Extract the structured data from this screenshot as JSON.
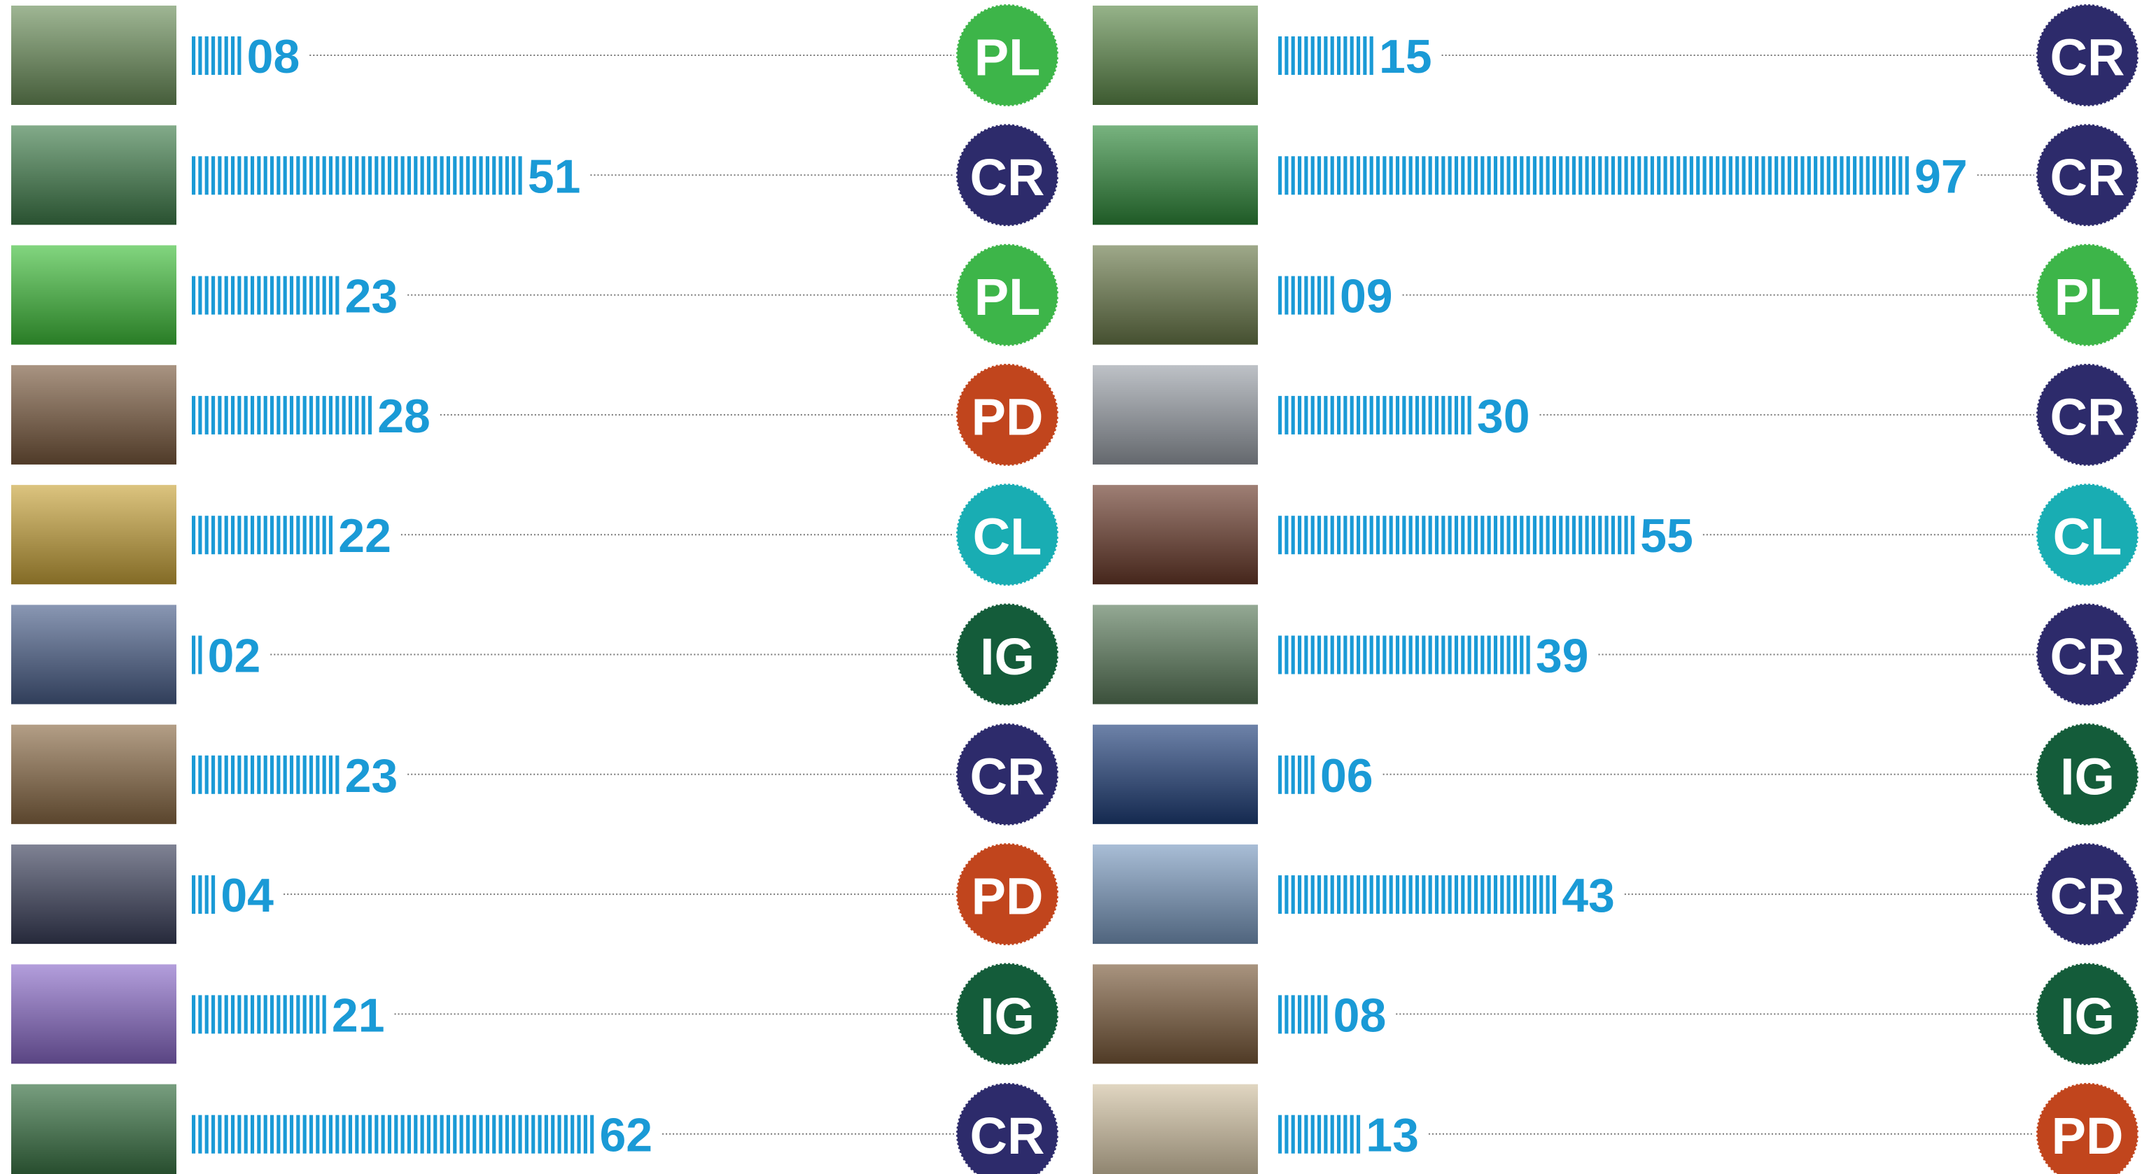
{
  "columns": [
    {
      "rows": [
        {
          "value": 8,
          "value_label": "08",
          "code": "PL",
          "color": "#3db549"
        },
        {
          "value": 51,
          "value_label": "51",
          "code": "CR",
          "color": "#2d2b6b"
        },
        {
          "value": 23,
          "value_label": "23",
          "code": "PL",
          "color": "#3db549"
        },
        {
          "value": 28,
          "value_label": "28",
          "code": "PD",
          "color": "#c1451d"
        },
        {
          "value": 22,
          "value_label": "22",
          "code": "CL",
          "color": "#19adb3"
        },
        {
          "value": 2,
          "value_label": "02",
          "code": "IG",
          "color": "#145c3a"
        },
        {
          "value": 23,
          "value_label": "23",
          "code": "CR",
          "color": "#2d2b6b"
        },
        {
          "value": 4,
          "value_label": "04",
          "code": "PD",
          "color": "#c1451d"
        },
        {
          "value": 21,
          "value_label": "21",
          "code": "IG",
          "color": "#145c3a"
        },
        {
          "value": 62,
          "value_label": "62",
          "code": "CR",
          "color": "#2d2b6b"
        }
      ]
    },
    {
      "rows": [
        {
          "value": 15,
          "value_label": "15",
          "code": "CR",
          "color": "#2d2b6b"
        },
        {
          "value": 97,
          "value_label": "97",
          "code": "CR",
          "color": "#2d2b6b"
        },
        {
          "value": 9,
          "value_label": "09",
          "code": "PL",
          "color": "#3db549"
        },
        {
          "value": 30,
          "value_label": "30",
          "code": "CR",
          "color": "#2d2b6b"
        },
        {
          "value": 55,
          "value_label": "55",
          "code": "CL",
          "color": "#19adb3"
        },
        {
          "value": 39,
          "value_label": "39",
          "code": "CR",
          "color": "#2d2b6b"
        },
        {
          "value": 6,
          "value_label": "06",
          "code": "IG",
          "color": "#145c3a"
        },
        {
          "value": 43,
          "value_label": "43",
          "code": "CR",
          "color": "#2d2b6b"
        },
        {
          "value": 8,
          "value_label": "08",
          "code": "IG",
          "color": "#145c3a"
        },
        {
          "value": 13,
          "value_label": "13",
          "code": "PD",
          "color": "#c1451d"
        }
      ]
    }
  ]
}
